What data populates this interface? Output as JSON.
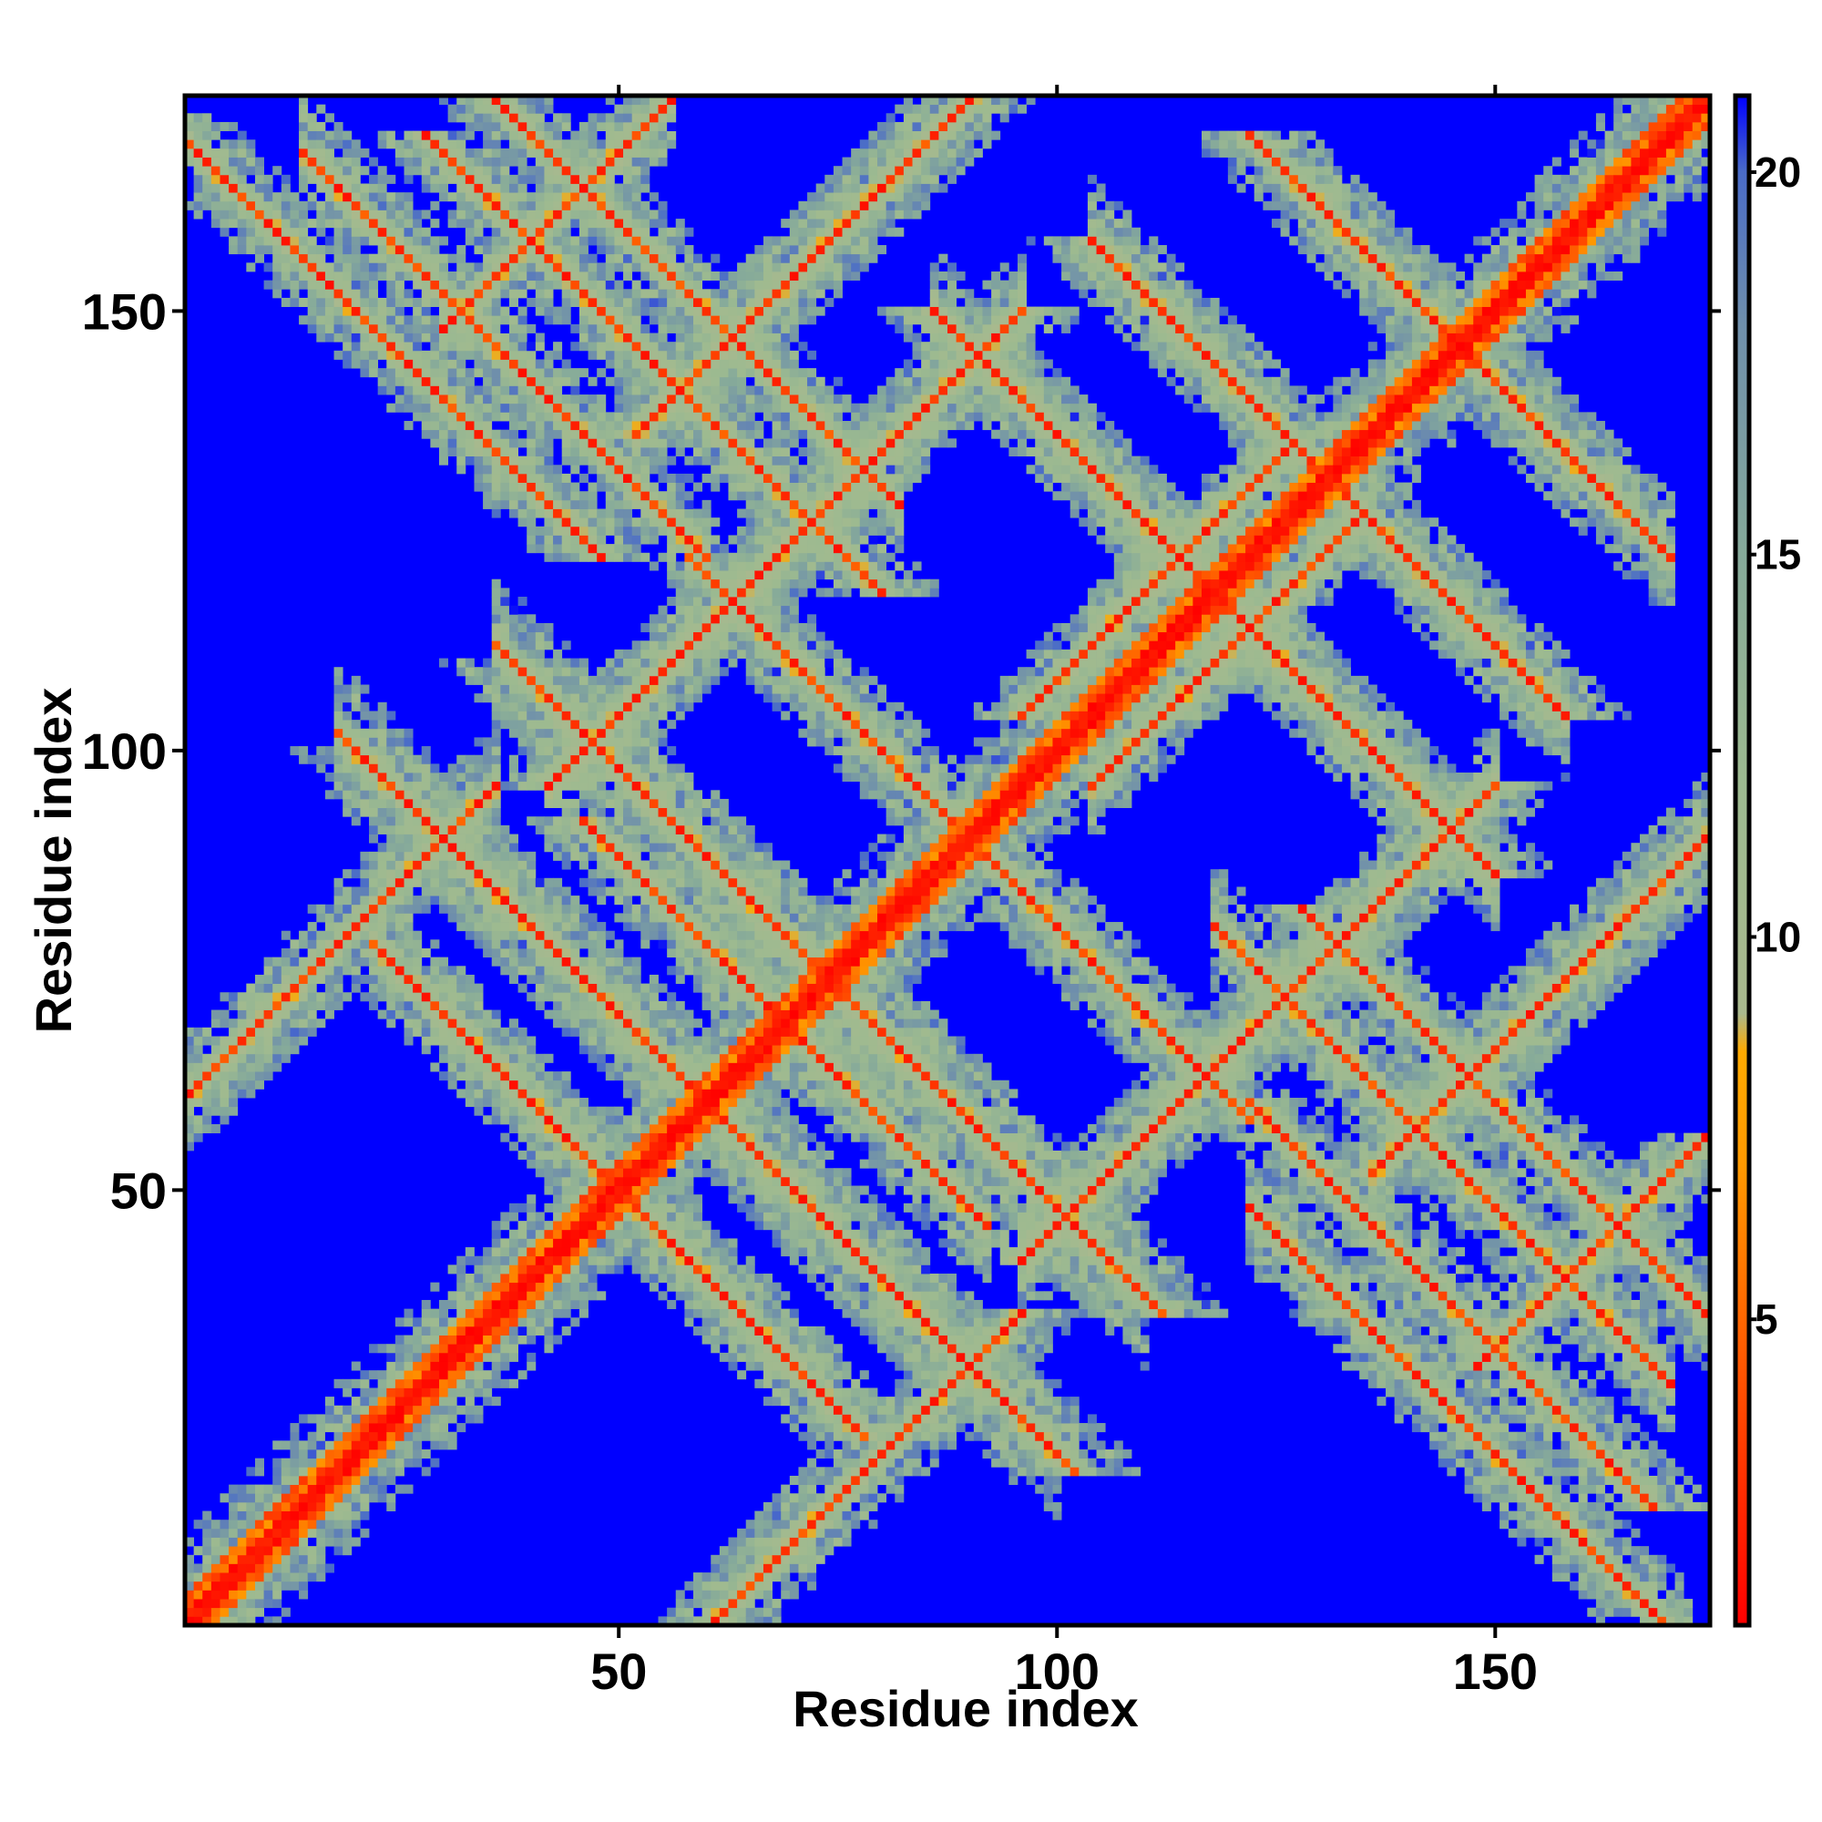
{
  "chart_data": {
    "type": "heatmap",
    "title": "",
    "xlabel": "Residue index",
    "ylabel": "Residue index",
    "n_residues": 174,
    "x_range": [
      1,
      174
    ],
    "y_range": [
      1,
      174
    ],
    "x_ticks": [
      50,
      100,
      150
    ],
    "y_ticks": [
      50,
      100,
      150
    ],
    "grid": false,
    "legend": "colorbar-right",
    "colorbar": {
      "min": 1,
      "max": 21,
      "ticks": [
        5,
        10,
        15,
        20
      ],
      "stops": [
        {
          "value": 1,
          "color": "#ff0000"
        },
        {
          "value": 3,
          "color": "#ff3300"
        },
        {
          "value": 5,
          "color": "#ff6600"
        },
        {
          "value": 7,
          "color": "#ff9900"
        },
        {
          "value": 8.5,
          "color": "#ffaa00"
        },
        {
          "value": 9,
          "color": "#a9b98e"
        },
        {
          "value": 12,
          "color": "#9dba90"
        },
        {
          "value": 15,
          "color": "#86aa9a"
        },
        {
          "value": 18,
          "color": "#6f8fab"
        },
        {
          "value": 20,
          "color": "#4a6cc8"
        },
        {
          "value": 21,
          "color": "#0000ff"
        }
      ]
    },
    "background_value": 21,
    "bands": [
      {
        "type": "diagonal",
        "center": 0,
        "width": 2.2
      },
      {
        "type": "diagonal",
        "center": -1,
        "width": 3.5,
        "peak": 8
      },
      {
        "type": "anti",
        "sum": 182,
        "from": 14,
        "to": 60,
        "width": 2.6
      },
      {
        "type": "anti",
        "sum": 180,
        "from": 58,
        "to": 90,
        "width": 2.6
      },
      {
        "type": "anti",
        "sum": 148,
        "from": 36,
        "to": 110,
        "width": 2.8
      },
      {
        "type": "anti",
        "sum": 138,
        "from": 60,
        "to": 92,
        "width": 2.6
      },
      {
        "type": "anti",
        "sum": 120,
        "from": 18,
        "to": 100,
        "width": 2.8
      },
      {
        "type": "anti",
        "sum": 100,
        "from": 22,
        "to": 74,
        "width": 2.6
      },
      {
        "type": "anti",
        "sum": 210,
        "from": 28,
        "to": 82,
        "width": 2.6
      },
      {
        "type": "anti",
        "sum": 236,
        "from": 86,
        "to": 150,
        "width": 2.6
      },
      {
        "type": "anti",
        "sum": 262,
        "from": 104,
        "to": 158,
        "width": 2.6
      },
      {
        "type": "anti",
        "sum": 292,
        "from": 128,
        "to": 170,
        "width": 2.6
      },
      {
        "type": "anti",
        "sum": 198,
        "from": 118,
        "to": 170,
        "width": 2.6
      },
      {
        "type": "anti",
        "sum": 170,
        "from": 122,
        "to": 172,
        "width": 2.6
      },
      {
        "type": "anti",
        "sum": 236,
        "from": 108,
        "to": 126,
        "width": 2.4
      },
      {
        "type": "parallel",
        "offset": -60,
        "from": 18,
        "to": 72,
        "width": 2.6
      },
      {
        "type": "parallel",
        "offset": 60,
        "from": 8,
        "to": 36,
        "width": 2.6
      },
      {
        "type": "parallel",
        "offset": -118,
        "from": 12,
        "to": 58,
        "width": 2.6
      },
      {
        "type": "parallel",
        "offset": -106,
        "from": 30,
        "to": 66,
        "width": 2.4
      },
      {
        "type": "parallel",
        "offset": -54,
        "from": 96,
        "to": 150,
        "width": 2.6
      },
      {
        "type": "parallel",
        "offset": 54,
        "from": 42,
        "to": 96,
        "width": 2.6
      },
      {
        "type": "parallel",
        "offset": 84,
        "from": 52,
        "to": 92,
        "width": 2.4
      },
      {
        "type": "parallel",
        "offset": -84,
        "from": 136,
        "to": 174,
        "width": 2.4
      },
      {
        "type": "parallel",
        "offset": 118,
        "from": 30,
        "to": 56,
        "width": 2.4
      },
      {
        "type": "parallel",
        "offset": 8,
        "from": 104,
        "to": 126,
        "width": 2.2
      },
      {
        "type": "parallel",
        "offset": -8,
        "from": 104,
        "to": 126,
        "width": 2.2
      }
    ]
  }
}
